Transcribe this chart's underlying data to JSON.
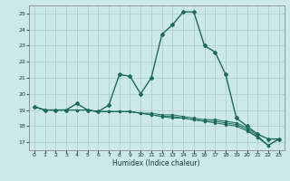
{
  "xlabel": "Humidex (Indice chaleur)",
  "bg_color": "#cce8e8",
  "grid_color": "#aacccc",
  "line_color": "#1a6b5a",
  "x_ticks": [
    0,
    1,
    2,
    3,
    4,
    5,
    6,
    7,
    8,
    9,
    10,
    11,
    12,
    13,
    14,
    15,
    16,
    17,
    18,
    19,
    20,
    21,
    22,
    23
  ],
  "y_ticks": [
    17,
    18,
    19,
    20,
    21,
    22,
    23,
    24,
    25
  ],
  "xlim": [
    -0.5,
    23.5
  ],
  "ylim": [
    16.5,
    25.5
  ],
  "lines": [
    [
      19.2,
      19.0,
      19.0,
      19.0,
      19.4,
      19.0,
      18.9,
      19.3,
      21.2,
      21.1,
      20.0,
      21.0,
      23.7,
      24.3,
      25.1,
      25.1,
      23.0,
      22.6,
      21.2,
      18.5,
      18.0,
      17.5,
      17.2,
      17.2
    ],
    [
      19.2,
      19.0,
      19.0,
      19.0,
      19.0,
      19.0,
      18.9,
      18.9,
      18.9,
      18.9,
      18.8,
      18.8,
      18.7,
      18.7,
      18.6,
      18.5,
      18.4,
      18.4,
      18.3,
      18.2,
      17.9,
      17.4,
      16.8,
      17.2
    ],
    [
      19.2,
      19.0,
      19.0,
      19.0,
      19.0,
      19.0,
      18.9,
      18.9,
      18.9,
      18.9,
      18.8,
      18.7,
      18.6,
      18.6,
      18.5,
      18.4,
      18.3,
      18.3,
      18.2,
      18.1,
      17.8,
      17.3,
      16.8,
      17.2
    ],
    [
      19.2,
      19.0,
      19.0,
      19.0,
      19.0,
      19.0,
      18.9,
      18.9,
      18.9,
      18.9,
      18.8,
      18.7,
      18.6,
      18.5,
      18.5,
      18.4,
      18.3,
      18.2,
      18.1,
      18.0,
      17.7,
      17.3,
      16.8,
      17.2
    ]
  ]
}
